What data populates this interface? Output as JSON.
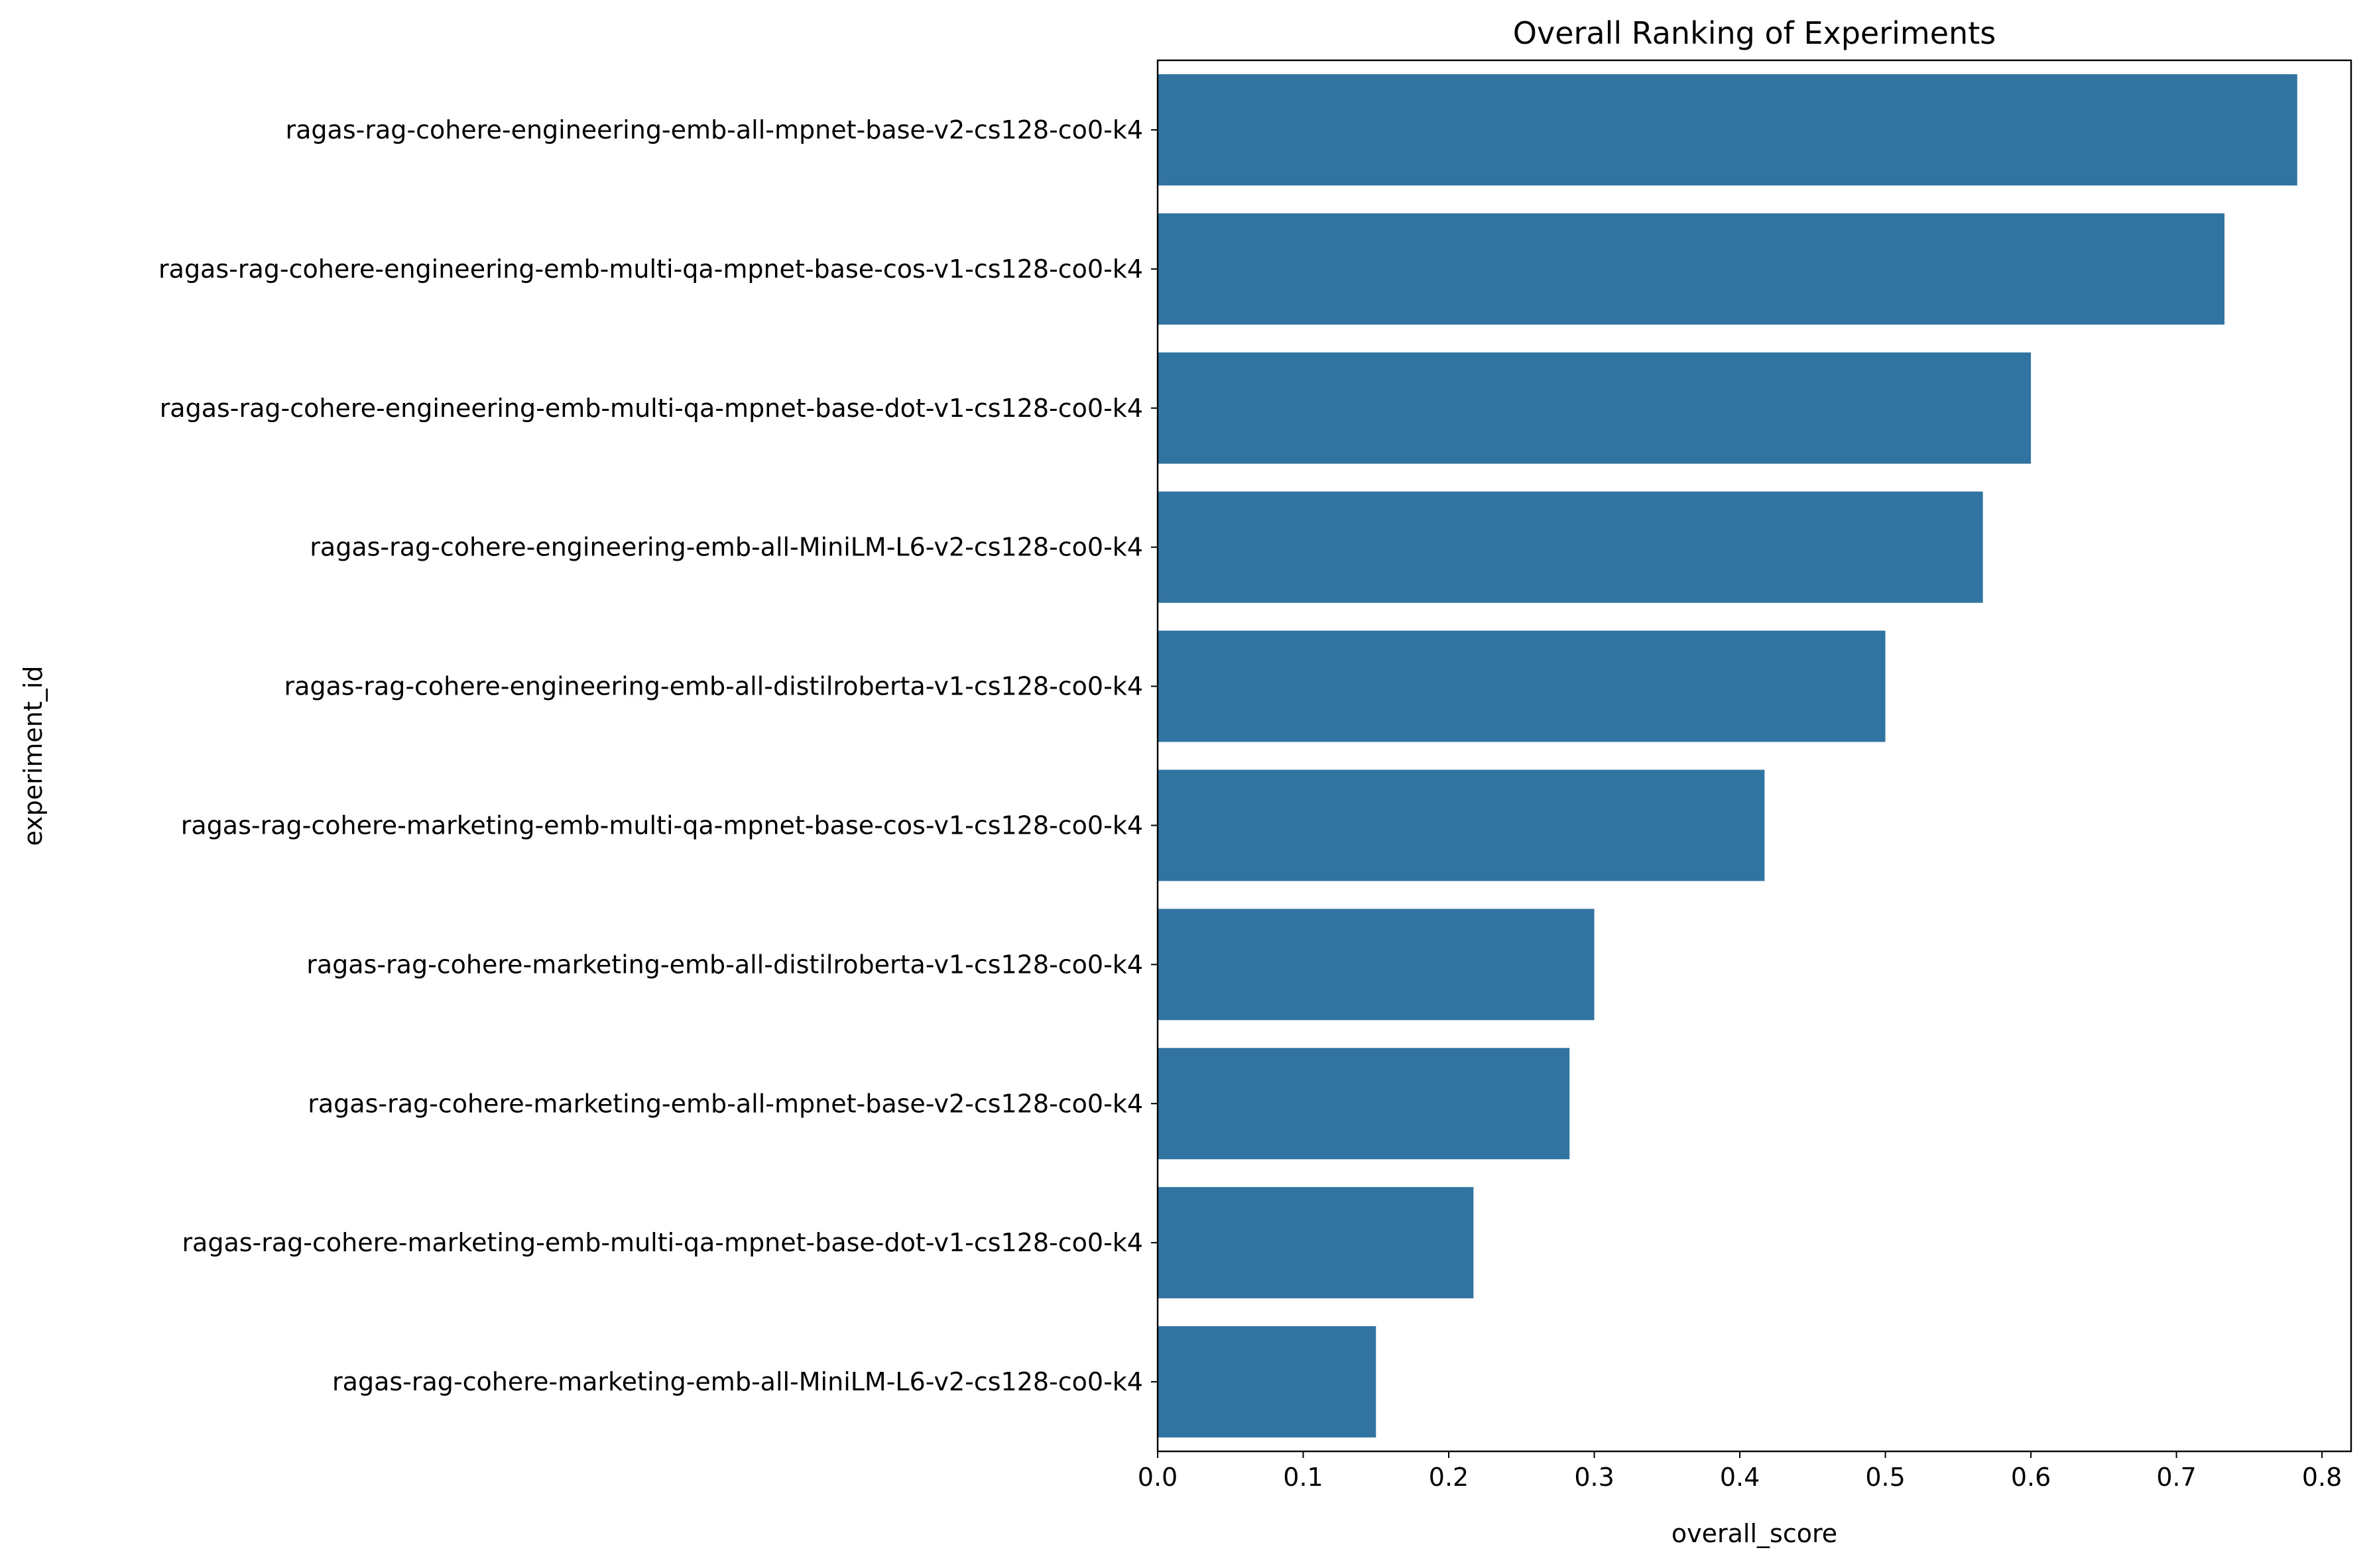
{
  "chart_data": {
    "type": "bar",
    "orientation": "horizontal",
    "title": "Overall Ranking of Experiments",
    "xlabel": "overall_score",
    "ylabel": "experiment_id",
    "xlim": [
      0,
      0.82
    ],
    "xticks": [
      "0.0",
      "0.1",
      "0.2",
      "0.3",
      "0.4",
      "0.5",
      "0.6",
      "0.7",
      "0.8"
    ],
    "grid": false,
    "legend": "none",
    "bar_color": "#3274a1",
    "categories": [
      "ragas-rag-cohere-engineering-emb-all-mpnet-base-v2-cs128-co0-k4",
      "ragas-rag-cohere-engineering-emb-multi-qa-mpnet-base-cos-v1-cs128-co0-k4",
      "ragas-rag-cohere-engineering-emb-multi-qa-mpnet-base-dot-v1-cs128-co0-k4",
      "ragas-rag-cohere-engineering-emb-all-MiniLM-L6-v2-cs128-co0-k4",
      "ragas-rag-cohere-engineering-emb-all-distilroberta-v1-cs128-co0-k4",
      "ragas-rag-cohere-marketing-emb-multi-qa-mpnet-base-cos-v1-cs128-co0-k4",
      "ragas-rag-cohere-marketing-emb-all-distilroberta-v1-cs128-co0-k4",
      "ragas-rag-cohere-marketing-emb-all-mpnet-base-v2-cs128-co0-k4",
      "ragas-rag-cohere-marketing-emb-multi-qa-mpnet-base-dot-v1-cs128-co0-k4",
      "ragas-rag-cohere-marketing-emb-all-MiniLM-L6-v2-cs128-co0-k4"
    ],
    "values": [
      0.783,
      0.733,
      0.6,
      0.567,
      0.5,
      0.417,
      0.3,
      0.283,
      0.217,
      0.15
    ]
  }
}
